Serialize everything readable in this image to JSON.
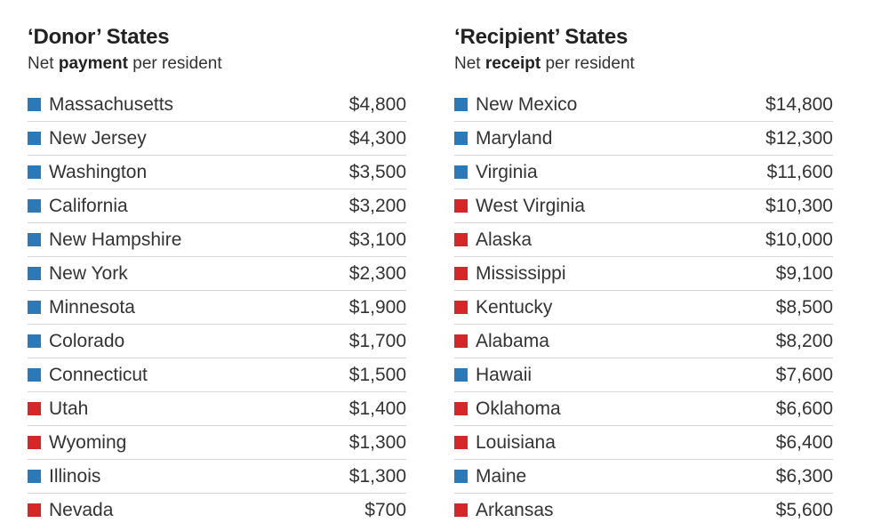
{
  "colors": {
    "blue": "#2a7ab9",
    "red": "#d62628"
  },
  "chart_data": [
    {
      "type": "table",
      "title": "‘Donor’ States",
      "subtitle_pre": "Net ",
      "subtitle_bold": "payment",
      "subtitle_post": " per resident",
      "rows": [
        {
          "state": "Massachusetts",
          "value": 4800,
          "label": "$4,800",
          "color": "blue"
        },
        {
          "state": "New Jersey",
          "value": 4300,
          "label": "$4,300",
          "color": "blue"
        },
        {
          "state": "Washington",
          "value": 3500,
          "label": "$3,500",
          "color": "blue"
        },
        {
          "state": "California",
          "value": 3200,
          "label": "$3,200",
          "color": "blue"
        },
        {
          "state": "New Hampshire",
          "value": 3100,
          "label": "$3,100",
          "color": "blue"
        },
        {
          "state": "New York",
          "value": 2300,
          "label": "$2,300",
          "color": "blue"
        },
        {
          "state": "Minnesota",
          "value": 1900,
          "label": "$1,900",
          "color": "blue"
        },
        {
          "state": "Colorado",
          "value": 1700,
          "label": "$1,700",
          "color": "blue"
        },
        {
          "state": "Connecticut",
          "value": 1500,
          "label": "$1,500",
          "color": "blue"
        },
        {
          "state": "Utah",
          "value": 1400,
          "label": "$1,400",
          "color": "red"
        },
        {
          "state": "Wyoming",
          "value": 1300,
          "label": "$1,300",
          "color": "red"
        },
        {
          "state": "Illinois",
          "value": 1300,
          "label": "$1,300",
          "color": "blue"
        },
        {
          "state": "Nevada",
          "value": 700,
          "label": "$700",
          "color": "red"
        }
      ]
    },
    {
      "type": "table",
      "title": "‘Recipient’ States",
      "subtitle_pre": "Net ",
      "subtitle_bold": "receipt",
      "subtitle_post": " per resident",
      "rows": [
        {
          "state": "New Mexico",
          "value": 14800,
          "label": "$14,800",
          "color": "blue"
        },
        {
          "state": "Maryland",
          "value": 12300,
          "label": "$12,300",
          "color": "blue"
        },
        {
          "state": "Virginia",
          "value": 11600,
          "label": "$11,600",
          "color": "blue"
        },
        {
          "state": "West Virginia",
          "value": 10300,
          "label": "$10,300",
          "color": "red"
        },
        {
          "state": "Alaska",
          "value": 10000,
          "label": "$10,000",
          "color": "red"
        },
        {
          "state": "Mississippi",
          "value": 9100,
          "label": "$9,100",
          "color": "red"
        },
        {
          "state": "Kentucky",
          "value": 8500,
          "label": "$8,500",
          "color": "red"
        },
        {
          "state": "Alabama",
          "value": 8200,
          "label": "$8,200",
          "color": "red"
        },
        {
          "state": "Hawaii",
          "value": 7600,
          "label": "$7,600",
          "color": "blue"
        },
        {
          "state": "Oklahoma",
          "value": 6600,
          "label": "$6,600",
          "color": "red"
        },
        {
          "state": "Louisiana",
          "value": 6400,
          "label": "$6,400",
          "color": "red"
        },
        {
          "state": "Maine",
          "value": 6300,
          "label": "$6,300",
          "color": "blue"
        },
        {
          "state": "Arkansas",
          "value": 5600,
          "label": "$5,600",
          "color": "red"
        }
      ]
    }
  ]
}
